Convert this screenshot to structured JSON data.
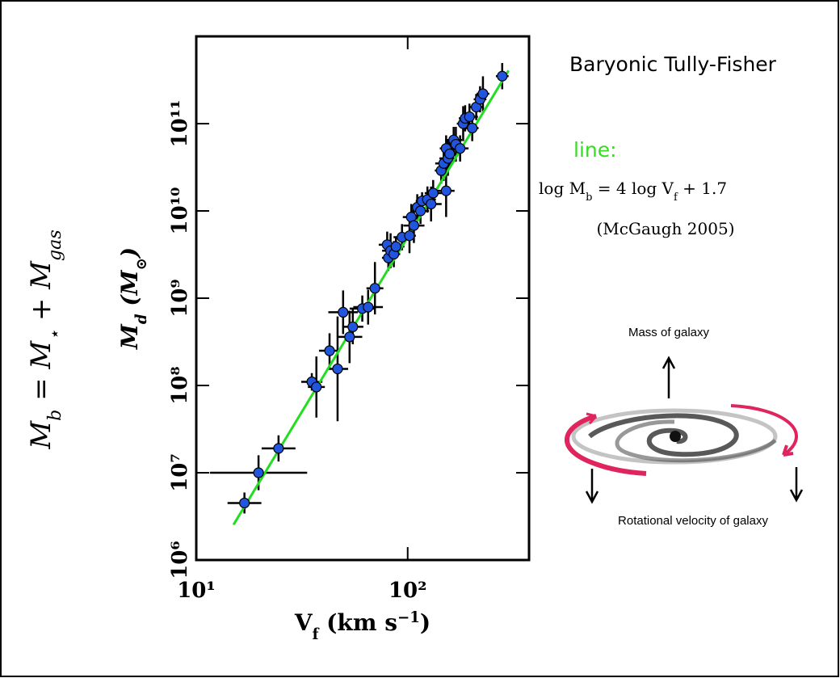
{
  "chart_data": {
    "type": "scatter",
    "title": "Baryonic Tully-Fisher",
    "xlabel": [
      "V",
      "f",
      " (km s",
      "−1",
      ")"
    ],
    "ylabel": [
      "M",
      "d",
      " (M",
      "⊙",
      ")"
    ],
    "formula": [
      "M",
      "b",
      " = M",
      "⋆",
      " + M",
      "gas"
    ],
    "fit_heading": "line:",
    "fit_equation": [
      "log M",
      "b",
      " = 4 log V",
      "f",
      " + 1.7"
    ],
    "fit_source": "(McGaugh 2005)",
    "fit": {
      "slope": 4,
      "intercept": 1.7,
      "x_range": [
        15,
        300
      ],
      "color": "#22dd22"
    },
    "diagram_labels": [
      "Mass of galaxy",
      "Rotational velocity of galaxy"
    ],
    "log_x": true,
    "log_y": true,
    "xlim": [
      10,
      375
    ],
    "ylim": [
      1000000,
      1000000000000
    ],
    "xticks": [
      {
        "value": 10,
        "label": "10¹"
      },
      {
        "value": 100,
        "label": "10²"
      }
    ],
    "yticks": [
      {
        "value": 1000000,
        "label": "10⁶"
      },
      {
        "value": 10000000,
        "label": "10⁷"
      },
      {
        "value": 100000000,
        "label": "10⁸"
      },
      {
        "value": 1000000000,
        "label": "10⁹"
      },
      {
        "value": 10000000000,
        "label": "10¹⁰"
      },
      {
        "value": 100000000000,
        "label": "10¹¹"
      }
    ],
    "x": [
      16.9,
      19.7,
      24.5,
      35.2,
      37.0,
      42.7,
      46.6,
      49.5,
      53.1,
      55,
      61,
      65,
      70,
      80,
      81,
      83,
      86,
      88,
      94,
      102,
      104,
      107,
      111,
      115,
      117,
      124,
      129,
      132,
      144,
      148,
      152,
      152,
      155,
      158,
      165,
      169,
      177,
      183,
      187,
      196,
      202,
      211,
      220,
      227,
      280
    ],
    "series": [
      {
        "color": "#2255dd",
        "values": [
          4500000,
          10000000,
          19000000,
          110000000,
          96000000,
          250000000,
          155000000,
          690000000,
          360000000,
          470000000,
          760000000,
          790000000,
          1300000000,
          4100000000,
          2900000000,
          3500000000,
          3200000000,
          3900000000,
          5000000000,
          5200000000,
          8500000000,
          6800000000,
          11000000000,
          10000000000,
          13000000000,
          13500000000,
          12000000000,
          16000000000,
          29000000000,
          35000000000,
          17000000000,
          52000000000,
          40000000000,
          45000000000,
          65000000000,
          58000000000,
          52000000000,
          100000000000,
          115000000000,
          120000000000,
          89000000000,
          155000000000,
          190000000000,
          220000000000,
          350000000000
        ],
        "x_err_dex": [
          0.08,
          0.23,
          0.08,
          0.05,
          0.04,
          0.05,
          0.05,
          0.07,
          0.06,
          0.05,
          0.06,
          0.07,
          0.04,
          0.04,
          0.03,
          0.04,
          0.03,
          0.04,
          0.04,
          0.03,
          0.04,
          0.05,
          0.03,
          0.04,
          0.03,
          0.04,
          0.05,
          0.04,
          0.03,
          0.04,
          0.04,
          0.03,
          0.04,
          0.03,
          0.04,
          0.03,
          0.04,
          0.03,
          0.03,
          0.04,
          0.03,
          0.03,
          0.03,
          0.03,
          0.03
        ],
        "y_err_dex": [
          0.12,
          0.2,
          0.15,
          0.1,
          0.35,
          0.2,
          0.6,
          0.25,
          0.3,
          0.2,
          0.15,
          0.2,
          0.3,
          0.15,
          0.15,
          0.2,
          0.15,
          0.1,
          0.15,
          0.2,
          0.15,
          0.2,
          0.15,
          0.15,
          0.1,
          0.15,
          0.2,
          0.15,
          0.15,
          0.2,
          0.3,
          0.15,
          0.2,
          0.15,
          0.15,
          0.2,
          0.15,
          0.2,
          0.15,
          0.15,
          0.15,
          0.15,
          0.15,
          0.2,
          0.15
        ]
      }
    ]
  }
}
